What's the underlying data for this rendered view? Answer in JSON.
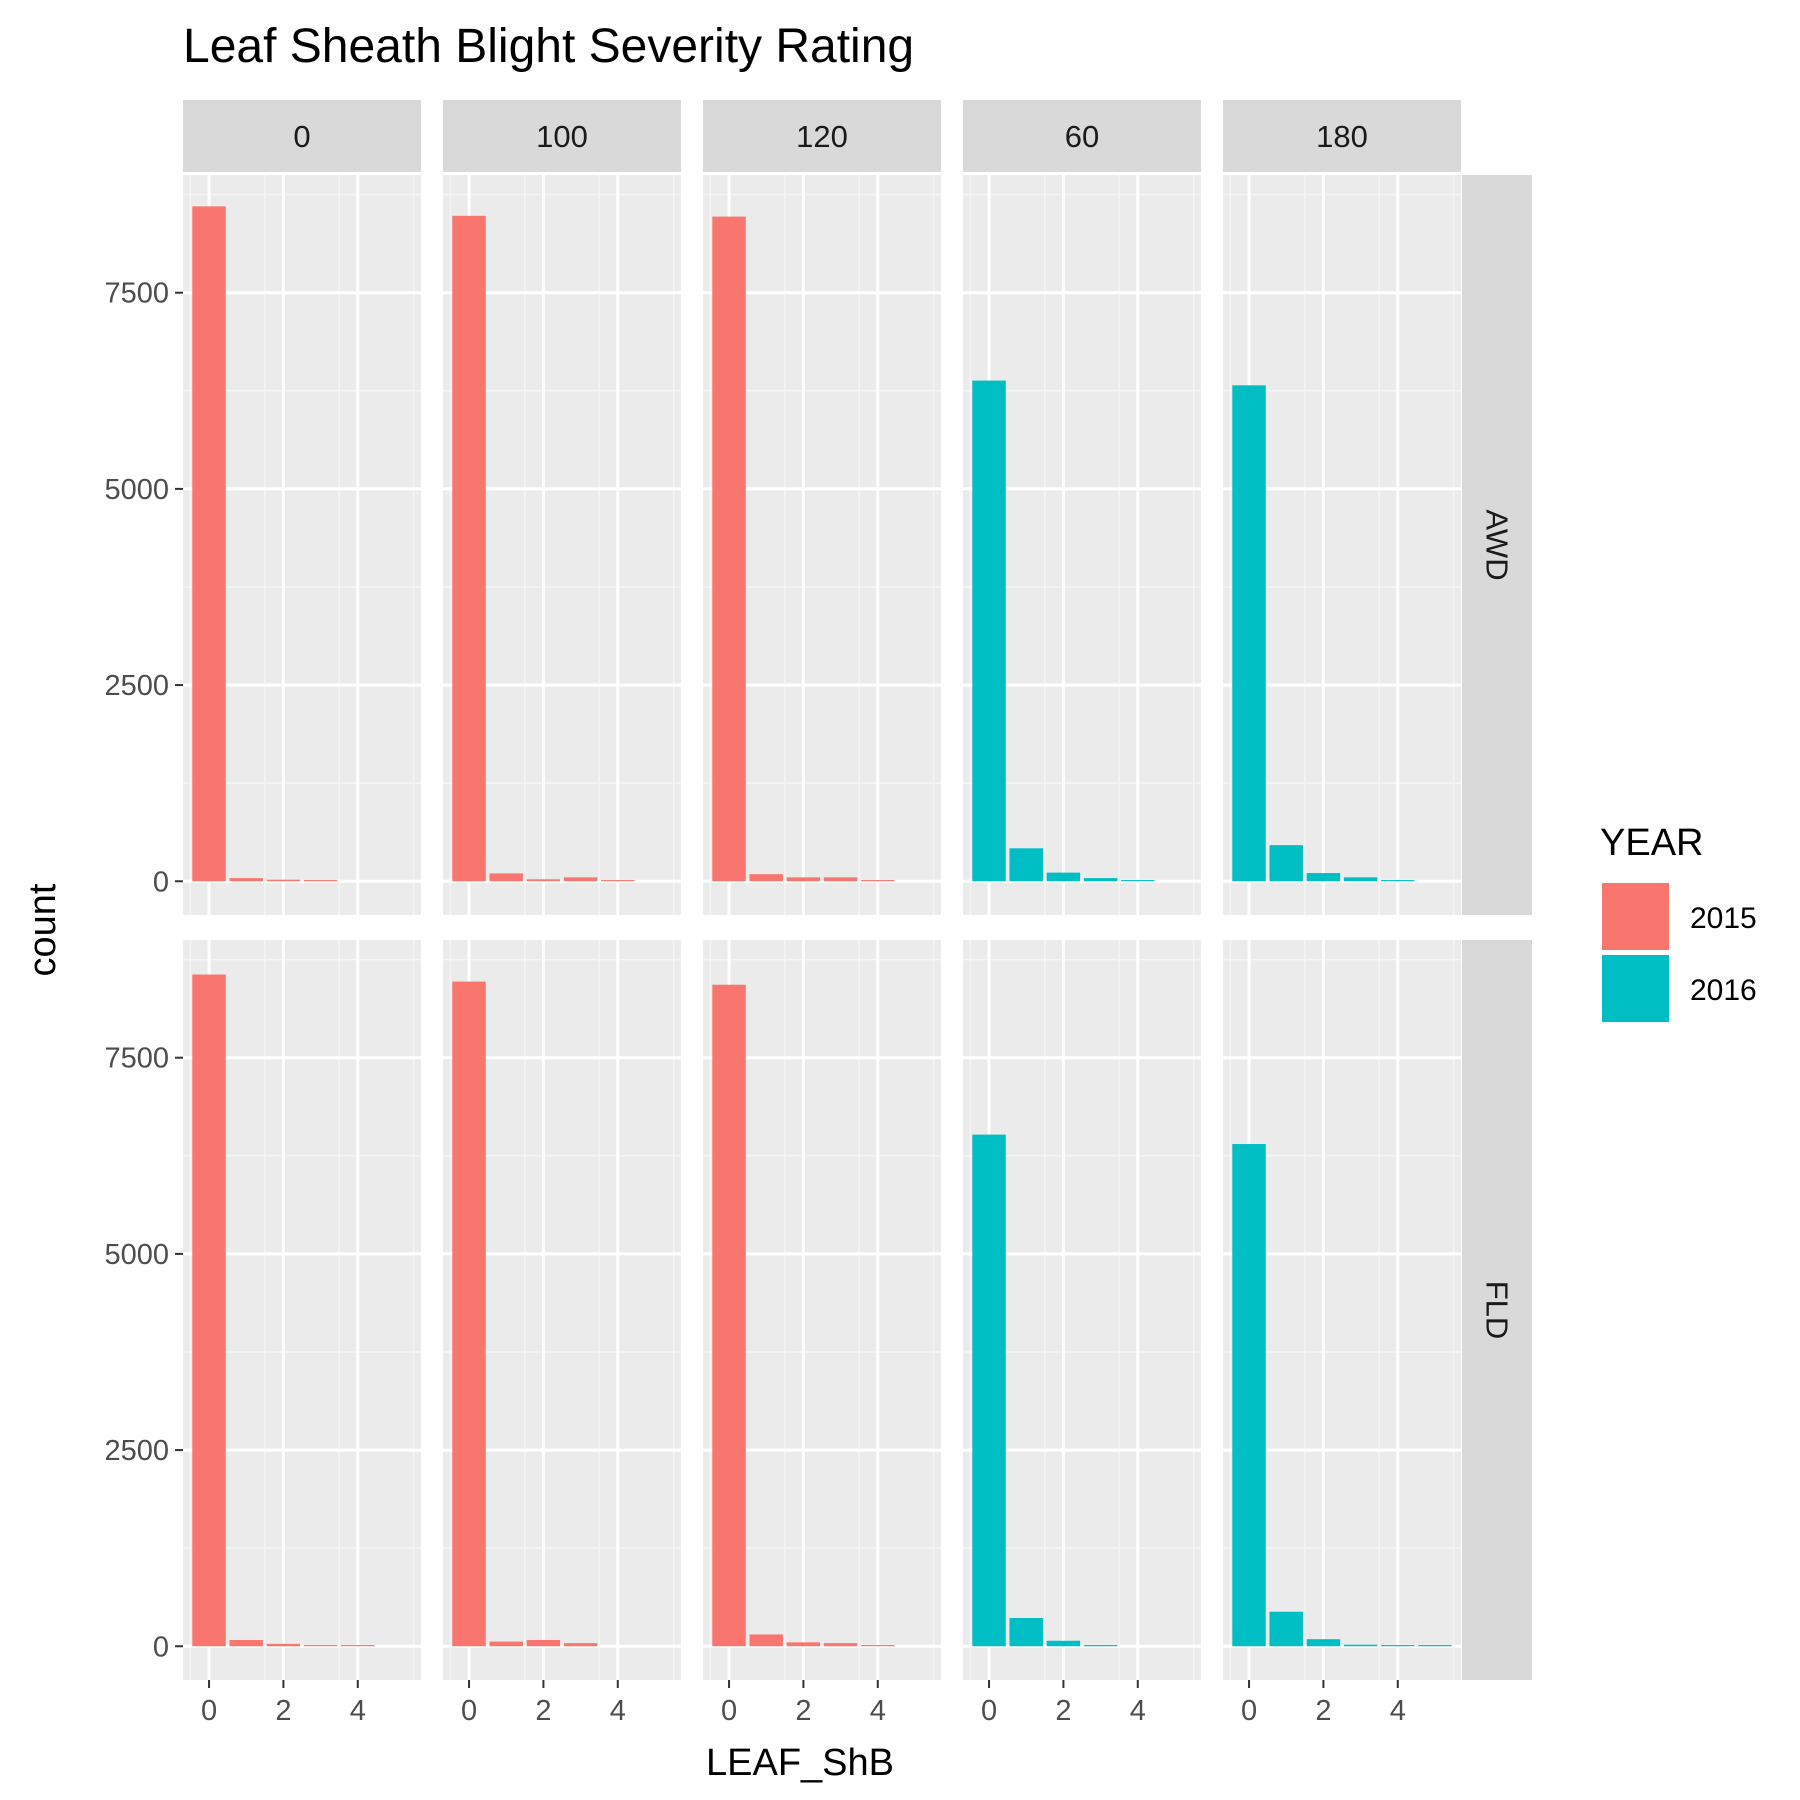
{
  "chart_data": {
    "type": "bar",
    "title": "Leaf Sheath Blight Severity Rating",
    "xlabel": "LEAF_ShB",
    "ylabel": "count",
    "x_ticks": [
      0,
      2,
      4
    ],
    "y_ticks": [
      0,
      2500,
      5000,
      7500
    ],
    "xlim": [
      -0.7,
      5.7
    ],
    "ylim": [
      -430,
      9000
    ],
    "grid": true,
    "legend": {
      "title": "YEAR",
      "position": "right",
      "entries": [
        {
          "label": "2015",
          "color": "#F8766D"
        },
        {
          "label": "2016",
          "color": "#00BFC4"
        }
      ]
    },
    "facet_columns": [
      "0",
      "100",
      "120",
      "60",
      "180"
    ],
    "facet_rows": [
      "AWD",
      "FLD"
    ],
    "x": [
      0,
      1,
      2,
      3,
      4,
      5
    ],
    "panels": [
      {
        "column": "0",
        "row": "AWD",
        "year": "2015",
        "values": [
          8600,
          40,
          20,
          10,
          0,
          0
        ]
      },
      {
        "column": "100",
        "row": "AWD",
        "year": "2015",
        "values": [
          8480,
          100,
          25,
          50,
          10,
          0
        ]
      },
      {
        "column": "120",
        "row": "AWD",
        "year": "2015",
        "values": [
          8470,
          90,
          50,
          50,
          10,
          0
        ]
      },
      {
        "column": "60",
        "row": "AWD",
        "year": "2016",
        "values": [
          6380,
          420,
          110,
          40,
          15,
          0
        ]
      },
      {
        "column": "180",
        "row": "AWD",
        "year": "2016",
        "values": [
          6320,
          460,
          105,
          50,
          10,
          0
        ]
      },
      {
        "column": "0",
        "row": "FLD",
        "year": "2015",
        "values": [
          8560,
          80,
          30,
          10,
          5,
          0
        ]
      },
      {
        "column": "100",
        "row": "FLD",
        "year": "2015",
        "values": [
          8470,
          60,
          80,
          40,
          0,
          0
        ]
      },
      {
        "column": "120",
        "row": "FLD",
        "year": "2015",
        "values": [
          8430,
          150,
          50,
          40,
          10,
          0
        ]
      },
      {
        "column": "60",
        "row": "FLD",
        "year": "2016",
        "values": [
          6520,
          360,
          70,
          10,
          0,
          0
        ]
      },
      {
        "column": "180",
        "row": "FLD",
        "year": "2016",
        "values": [
          6400,
          440,
          90,
          20,
          5,
          5
        ]
      }
    ]
  }
}
